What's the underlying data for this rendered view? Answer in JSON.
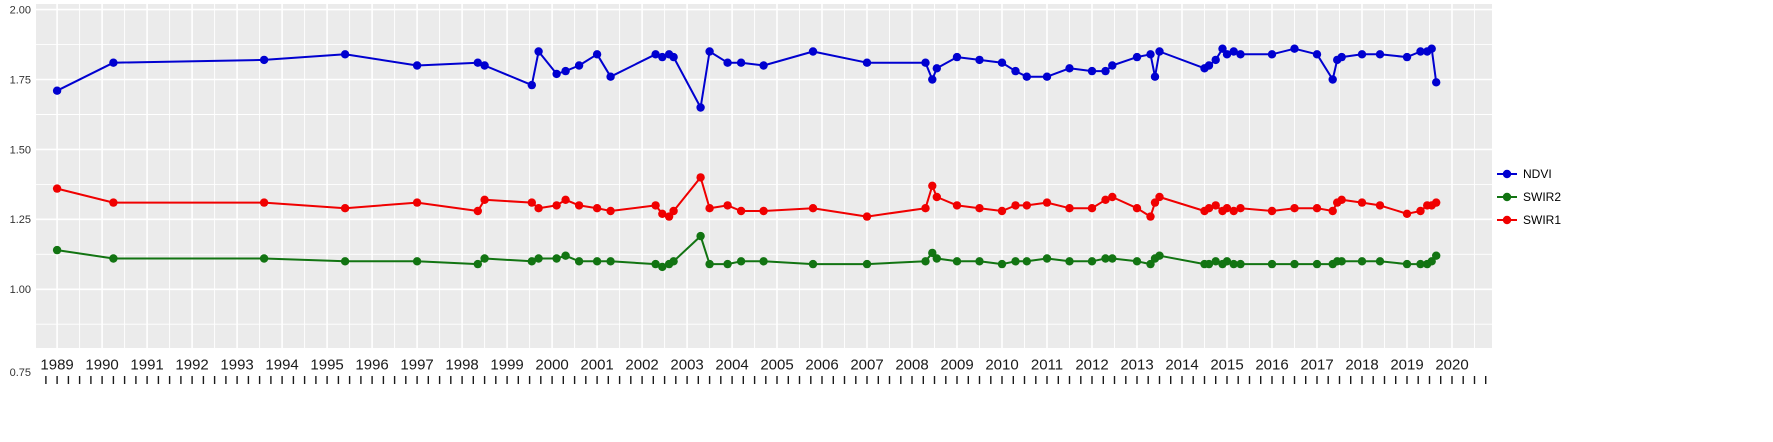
{
  "figure": {
    "background": "#FFFFFF",
    "panel_background": "#EBEBEB",
    "grid_color": "#FFFFFF",
    "axis_text_color": "#1A1A1A",
    "y_axis_text_color": "#333333"
  },
  "legend": {
    "position": "right",
    "items": [
      {
        "label": "NDVI",
        "color": "#0000D0"
      },
      {
        "label": "SWIR2",
        "color": "#127412"
      },
      {
        "label": "SWIR1",
        "color": "#F00000"
      }
    ]
  },
  "chart_data": {
    "type": "line",
    "title": "",
    "xlabel": "",
    "ylabel": "",
    "grid": true,
    "legend_position": "right",
    "xlim": [
      1988.53,
      2020.89
    ],
    "ylim": [
      0.75,
      2.0
    ],
    "x_ticks": [
      1989,
      1990,
      1991,
      1992,
      1993,
      1994,
      1995,
      1996,
      1997,
      1998,
      1999,
      2000,
      2001,
      2002,
      2003,
      2004,
      2005,
      2006,
      2007,
      2008,
      2009,
      2010,
      2011,
      2012,
      2013,
      2014,
      2015,
      2016,
      2017,
      2018,
      2019,
      2020
    ],
    "y_tick_labels": [
      "2.00",
      "1.75",
      "1.50",
      "1.25",
      "1.00",
      "0.75"
    ],
    "y_tick_values": [
      2.0,
      1.75,
      1.5,
      1.25,
      1.0,
      0.75
    ],
    "x": [
      1989.0,
      1990.25,
      1993.6,
      1995.4,
      1997.0,
      1998.35,
      1998.5,
      1999.55,
      1999.7,
      2000.1,
      2000.3,
      2000.6,
      2001.0,
      2001.3,
      2002.3,
      2002.45,
      2002.6,
      2002.7,
      2003.3,
      2003.5,
      2003.9,
      2004.2,
      2004.7,
      2005.8,
      2007.0,
      2008.3,
      2008.45,
      2008.55,
      2009.0,
      2009.5,
      2010.0,
      2010.3,
      2010.55,
      2011.0,
      2011.5,
      2012.0,
      2012.3,
      2012.45,
      2013.0,
      2013.3,
      2013.4,
      2013.5,
      2014.5,
      2014.6,
      2014.75,
      2014.9,
      2015.0,
      2015.15,
      2015.3,
      2016.0,
      2016.5,
      2017.0,
      2017.35,
      2017.45,
      2017.55,
      2018.0,
      2018.4,
      2019.0,
      2019.3,
      2019.45,
      2019.55,
      2019.65
    ],
    "series": [
      {
        "name": "NDVI",
        "color": "#0000D0",
        "values": [
          1.71,
          1.81,
          1.82,
          1.84,
          1.8,
          1.81,
          1.8,
          1.73,
          1.85,
          1.77,
          1.78,
          1.8,
          1.84,
          1.76,
          1.84,
          1.83,
          1.84,
          1.83,
          1.65,
          1.85,
          1.81,
          1.81,
          1.8,
          1.85,
          1.81,
          1.81,
          1.75,
          1.79,
          1.83,
          1.82,
          1.81,
          1.78,
          1.76,
          1.76,
          1.79,
          1.78,
          1.78,
          1.8,
          1.83,
          1.84,
          1.76,
          1.85,
          1.79,
          1.8,
          1.82,
          1.86,
          1.84,
          1.85,
          1.84,
          1.84,
          1.86,
          1.84,
          1.75,
          1.82,
          1.83,
          1.84,
          1.84,
          1.83,
          1.85,
          1.85,
          1.86,
          1.74
        ]
      },
      {
        "name": "SWIR2",
        "color": "#127412",
        "values": [
          1.14,
          1.11,
          1.11,
          1.1,
          1.1,
          1.09,
          1.11,
          1.1,
          1.11,
          1.11,
          1.12,
          1.1,
          1.1,
          1.1,
          1.09,
          1.08,
          1.09,
          1.1,
          1.19,
          1.09,
          1.09,
          1.1,
          1.1,
          1.09,
          1.09,
          1.1,
          1.13,
          1.11,
          1.1,
          1.1,
          1.09,
          1.1,
          1.1,
          1.11,
          1.1,
          1.1,
          1.11,
          1.11,
          1.1,
          1.09,
          1.11,
          1.12,
          1.09,
          1.09,
          1.1,
          1.09,
          1.1,
          1.09,
          1.09,
          1.09,
          1.09,
          1.09,
          1.09,
          1.1,
          1.1,
          1.1,
          1.1,
          1.09,
          1.09,
          1.09,
          1.1,
          1.12
        ]
      },
      {
        "name": "SWIR1",
        "color": "#F00000",
        "values": [
          1.36,
          1.31,
          1.31,
          1.29,
          1.31,
          1.28,
          1.32,
          1.31,
          1.29,
          1.3,
          1.32,
          1.3,
          1.29,
          1.28,
          1.3,
          1.27,
          1.26,
          1.28,
          1.4,
          1.29,
          1.3,
          1.28,
          1.28,
          1.29,
          1.26,
          1.29,
          1.37,
          1.33,
          1.3,
          1.29,
          1.28,
          1.3,
          1.3,
          1.31,
          1.29,
          1.29,
          1.32,
          1.33,
          1.29,
          1.26,
          1.31,
          1.33,
          1.28,
          1.29,
          1.3,
          1.28,
          1.29,
          1.28,
          1.29,
          1.28,
          1.29,
          1.29,
          1.28,
          1.31,
          1.32,
          1.31,
          1.3,
          1.27,
          1.28,
          1.3,
          1.3,
          1.31
        ]
      }
    ]
  }
}
